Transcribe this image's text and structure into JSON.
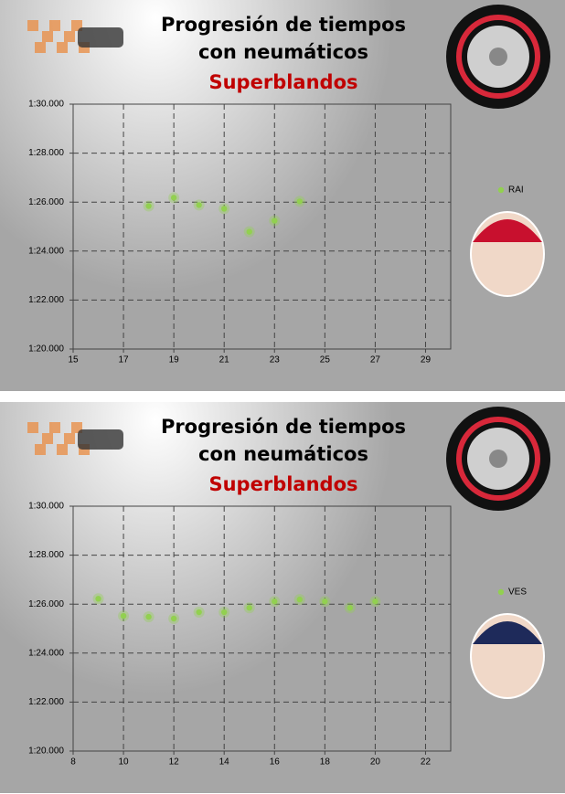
{
  "chart_data": [
    {
      "type": "scatter",
      "title": "Progresión de tiempos con neumáticos",
      "subtitle": "Superblandos",
      "x": [
        18,
        19,
        20,
        21,
        22,
        23,
        24
      ],
      "series": [
        {
          "name": "RAI",
          "color": "#92d050",
          "values": [
            85.84,
            86.18,
            85.88,
            85.73,
            84.79,
            85.24,
            86.03
          ]
        }
      ],
      "xlim": [
        15,
        30
      ],
      "xticks": [
        15,
        17,
        19,
        21,
        23,
        25,
        27,
        29
      ],
      "ylim": [
        80,
        90
      ],
      "yticks": [
        {
          "value": 80,
          "label": "1:20.000"
        },
        {
          "value": 82,
          "label": "1:22.000"
        },
        {
          "value": 84,
          "label": "1:24.000"
        },
        {
          "value": 86,
          "label": "1:26.000"
        },
        {
          "value": 88,
          "label": "1:28.000"
        },
        {
          "value": 90,
          "label": "1:30.000"
        }
      ],
      "grid": true
    },
    {
      "type": "scatter",
      "title": "Progresión de tiempos con neumáticos",
      "subtitle": "Superblandos",
      "x": [
        9,
        10,
        11,
        12,
        13,
        14,
        15,
        16,
        17,
        18,
        19,
        20
      ],
      "series": [
        {
          "name": "VES",
          "color": "#92d050",
          "values": [
            86.22,
            85.52,
            85.48,
            85.41,
            85.67,
            85.67,
            85.85,
            86.11,
            86.19,
            86.11,
            85.85,
            86.11
          ]
        }
      ],
      "xlim": [
        8,
        23
      ],
      "xticks": [
        8,
        10,
        12,
        14,
        16,
        18,
        20,
        22
      ],
      "ylim": [
        80,
        90
      ],
      "yticks": [
        {
          "value": 80,
          "label": "1:20.000"
        },
        {
          "value": 82,
          "label": "1:22.000"
        },
        {
          "value": 84,
          "label": "1:24.000"
        },
        {
          "value": 86,
          "label": "1:26.000"
        },
        {
          "value": 88,
          "label": "1:28.000"
        },
        {
          "value": 90,
          "label": "1:30.000"
        }
      ],
      "grid": true
    }
  ]
}
